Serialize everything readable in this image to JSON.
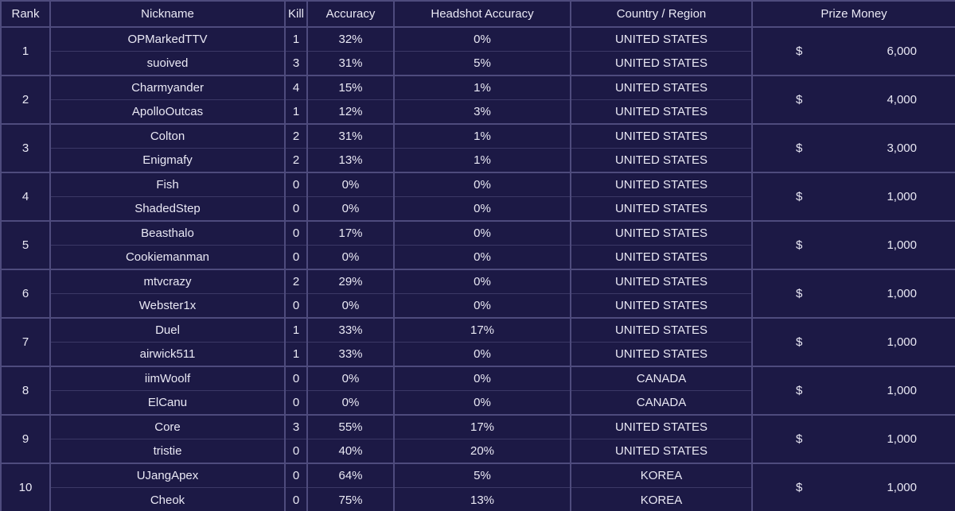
{
  "table": {
    "columns": [
      "Rank",
      "Nickname",
      "Kill",
      "Accuracy",
      "Headshot Accuracy",
      "Country / Region",
      "Prize Money"
    ],
    "currency_symbol": "$",
    "groups": [
      {
        "rank": "1",
        "prize": "6,000",
        "players": [
          {
            "nickname": "OPMarkedTTV",
            "kill": "1",
            "accuracy": "32%",
            "headshot_accuracy": "0%",
            "country": "UNITED STATES"
          },
          {
            "nickname": "suoived",
            "kill": "3",
            "accuracy": "31%",
            "headshot_accuracy": "5%",
            "country": "UNITED STATES"
          }
        ]
      },
      {
        "rank": "2",
        "prize": "4,000",
        "players": [
          {
            "nickname": "Charmyander",
            "kill": "4",
            "accuracy": "15%",
            "headshot_accuracy": "1%",
            "country": "UNITED STATES"
          },
          {
            "nickname": "ApolloOutcas",
            "kill": "1",
            "accuracy": "12%",
            "headshot_accuracy": "3%",
            "country": "UNITED STATES"
          }
        ]
      },
      {
        "rank": "3",
        "prize": "3,000",
        "players": [
          {
            "nickname": "Colton",
            "kill": "2",
            "accuracy": "31%",
            "headshot_accuracy": "1%",
            "country": "UNITED STATES"
          },
          {
            "nickname": "Enigmafy",
            "kill": "2",
            "accuracy": "13%",
            "headshot_accuracy": "1%",
            "country": "UNITED STATES"
          }
        ]
      },
      {
        "rank": "4",
        "prize": "1,000",
        "players": [
          {
            "nickname": "Fish",
            "kill": "0",
            "accuracy": "0%",
            "headshot_accuracy": "0%",
            "country": "UNITED STATES"
          },
          {
            "nickname": "ShadedStep",
            "kill": "0",
            "accuracy": "0%",
            "headshot_accuracy": "0%",
            "country": "UNITED STATES"
          }
        ]
      },
      {
        "rank": "5",
        "prize": "1,000",
        "players": [
          {
            "nickname": "Beasthalo",
            "kill": "0",
            "accuracy": "17%",
            "headshot_accuracy": "0%",
            "country": "UNITED STATES"
          },
          {
            "nickname": "Cookiemanman",
            "kill": "0",
            "accuracy": "0%",
            "headshot_accuracy": "0%",
            "country": "UNITED STATES"
          }
        ]
      },
      {
        "rank": "6",
        "prize": "1,000",
        "players": [
          {
            "nickname": "mtvcrazy",
            "kill": "2",
            "accuracy": "29%",
            "headshot_accuracy": "0%",
            "country": "UNITED STATES"
          },
          {
            "nickname": "Webster1x",
            "kill": "0",
            "accuracy": "0%",
            "headshot_accuracy": "0%",
            "country": "UNITED STATES"
          }
        ]
      },
      {
        "rank": "7",
        "prize": "1,000",
        "players": [
          {
            "nickname": "Duel",
            "kill": "1",
            "accuracy": "33%",
            "headshot_accuracy": "17%",
            "country": "UNITED STATES"
          },
          {
            "nickname": "airwick511",
            "kill": "1",
            "accuracy": "33%",
            "headshot_accuracy": "0%",
            "country": "UNITED STATES"
          }
        ]
      },
      {
        "rank": "8",
        "prize": "1,000",
        "players": [
          {
            "nickname": "iimWoolf",
            "kill": "0",
            "accuracy": "0%",
            "headshot_accuracy": "0%",
            "country": "CANADA"
          },
          {
            "nickname": "ElCanu",
            "kill": "0",
            "accuracy": "0%",
            "headshot_accuracy": "0%",
            "country": "CANADA"
          }
        ]
      },
      {
        "rank": "9",
        "prize": "1,000",
        "players": [
          {
            "nickname": "Core",
            "kill": "3",
            "accuracy": "55%",
            "headshot_accuracy": "17%",
            "country": "UNITED STATES"
          },
          {
            "nickname": "tristie",
            "kill": "0",
            "accuracy": "40%",
            "headshot_accuracy": "20%",
            "country": "UNITED STATES"
          }
        ]
      },
      {
        "rank": "10",
        "prize": "1,000",
        "players": [
          {
            "nickname": "UJangApex",
            "kill": "0",
            "accuracy": "64%",
            "headshot_accuracy": "5%",
            "country": "KOREA"
          },
          {
            "nickname": "Cheok",
            "kill": "0",
            "accuracy": "75%",
            "headshot_accuracy": "13%",
            "country": "KOREA"
          }
        ]
      }
    ]
  },
  "colors": {
    "background": "#1c1945",
    "border_bright": "#4e4b7d",
    "border_dim": "#3b3866",
    "text": "#e9e8f4"
  }
}
